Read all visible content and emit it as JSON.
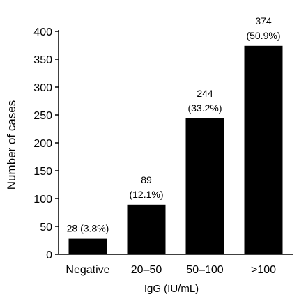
{
  "chart_data": {
    "type": "bar",
    "categories": [
      "Negative",
      "20–50",
      "50–100",
      ">100"
    ],
    "values": [
      28,
      89,
      244,
      374
    ],
    "data_labels": [
      [
        "28 (3.8%)"
      ],
      [
        "89",
        "(12.1%)"
      ],
      [
        "244",
        "(33.2%)"
      ],
      [
        "374",
        "(50.9%)"
      ]
    ],
    "title": "",
    "xlabel": "IgG (IU/mL)",
    "ylabel": "Number of cases",
    "ylim": [
      0,
      400
    ],
    "yticks": [
      0,
      50,
      100,
      150,
      200,
      250,
      300,
      350,
      400
    ],
    "grid": false,
    "bar_color": "#000000"
  }
}
